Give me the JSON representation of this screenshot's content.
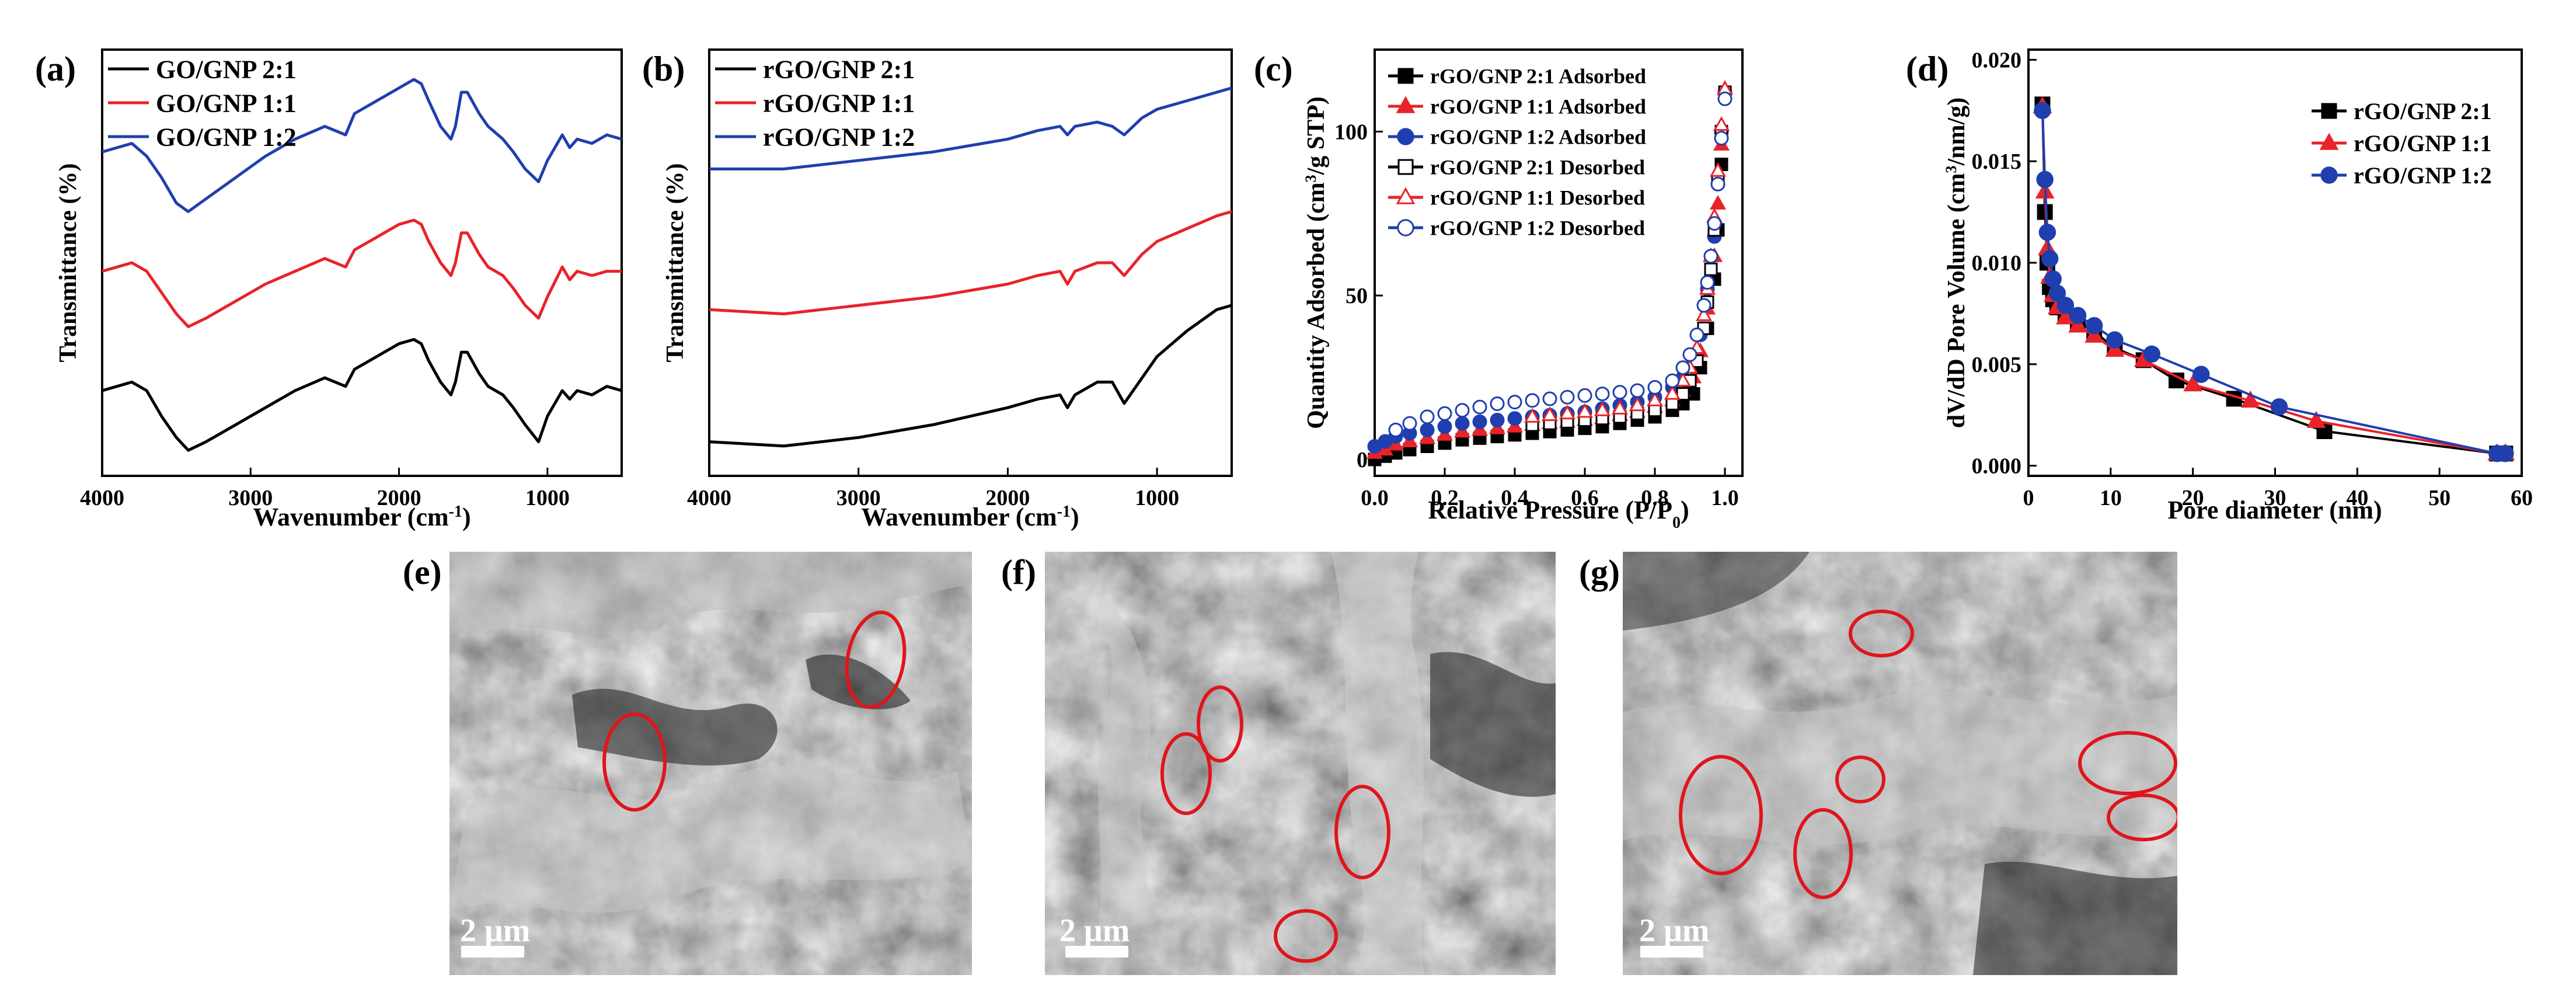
{
  "colors": {
    "black": "#000000",
    "red": "#e8232a",
    "blue": "#1f3fae",
    "circle": "#e0151c",
    "scalebar": "#ffffff"
  },
  "chart_data": [
    {
      "id": "a",
      "panel_label": "(a)",
      "type": "line",
      "title": "",
      "xlabel": "Wavenumber (cm",
      "xlabel_sup": "-1",
      "xlabel_end": ")",
      "ylabel": "Transmittance (%)",
      "xlim": [
        4000,
        500
      ],
      "xticks": [
        "4000",
        "3000",
        "2000",
        "1000"
      ],
      "ylim": [
        0,
        1
      ],
      "legend_position": "top-left",
      "series": [
        {
          "name": "GO/GNP 2:1",
          "color": "black",
          "x": [
            4000,
            3900,
            3800,
            3700,
            3600,
            3500,
            3420,
            3300,
            3100,
            2900,
            2700,
            2500,
            2360,
            2300,
            2200,
            2000,
            1900,
            1850,
            1800,
            1720,
            1650,
            1620,
            1580,
            1540,
            1460,
            1400,
            1300,
            1230,
            1150,
            1060,
            1000,
            900,
            850,
            800,
            700,
            600,
            500
          ],
          "y": [
            0.2,
            0.21,
            0.22,
            0.2,
            0.14,
            0.09,
            0.06,
            0.08,
            0.12,
            0.16,
            0.2,
            0.23,
            0.21,
            0.25,
            0.27,
            0.31,
            0.32,
            0.31,
            0.27,
            0.22,
            0.19,
            0.22,
            0.29,
            0.29,
            0.24,
            0.21,
            0.19,
            0.16,
            0.12,
            0.08,
            0.14,
            0.2,
            0.18,
            0.2,
            0.19,
            0.21,
            0.2
          ]
        },
        {
          "name": "GO/GNP 1:1",
          "color": "red",
          "x": [
            4000,
            3900,
            3800,
            3700,
            3600,
            3500,
            3420,
            3300,
            3100,
            2900,
            2700,
            2500,
            2360,
            2300,
            2200,
            2000,
            1900,
            1850,
            1800,
            1720,
            1650,
            1620,
            1580,
            1540,
            1460,
            1400,
            1300,
            1230,
            1150,
            1060,
            1000,
            900,
            850,
            800,
            700,
            600,
            500
          ],
          "y": [
            0.48,
            0.49,
            0.5,
            0.48,
            0.43,
            0.38,
            0.35,
            0.37,
            0.41,
            0.45,
            0.48,
            0.51,
            0.49,
            0.53,
            0.55,
            0.59,
            0.6,
            0.59,
            0.55,
            0.5,
            0.47,
            0.5,
            0.57,
            0.57,
            0.52,
            0.49,
            0.47,
            0.44,
            0.4,
            0.37,
            0.42,
            0.49,
            0.46,
            0.48,
            0.47,
            0.48,
            0.48
          ]
        },
        {
          "name": "GO/GNP 1:2",
          "color": "blue",
          "x": [
            4000,
            3900,
            3800,
            3700,
            3600,
            3500,
            3420,
            3300,
            3100,
            2900,
            2700,
            2500,
            2360,
            2300,
            2200,
            2000,
            1900,
            1850,
            1800,
            1720,
            1650,
            1620,
            1580,
            1540,
            1460,
            1400,
            1300,
            1230,
            1150,
            1060,
            1000,
            900,
            850,
            800,
            700,
            600,
            500
          ],
          "y": [
            0.76,
            0.77,
            0.78,
            0.75,
            0.7,
            0.64,
            0.62,
            0.65,
            0.7,
            0.75,
            0.79,
            0.82,
            0.8,
            0.85,
            0.87,
            0.91,
            0.93,
            0.92,
            0.88,
            0.82,
            0.79,
            0.82,
            0.9,
            0.9,
            0.85,
            0.82,
            0.79,
            0.76,
            0.72,
            0.69,
            0.74,
            0.8,
            0.77,
            0.79,
            0.78,
            0.8,
            0.79
          ]
        }
      ]
    },
    {
      "id": "b",
      "panel_label": "(b)",
      "type": "line",
      "title": "",
      "xlabel": "Wavenumber (cm",
      "xlabel_sup": "-1",
      "xlabel_end": ")",
      "ylabel": "Transmittance (%)",
      "xlim": [
        4000,
        500
      ],
      "xticks": [
        "4000",
        "3000",
        "2000",
        "1000"
      ],
      "ylim": [
        0,
        1
      ],
      "legend_position": "top-left",
      "series": [
        {
          "name": "rGO/GNP 2:1",
          "color": "black",
          "x": [
            4000,
            3500,
            3000,
            2500,
            2000,
            1800,
            1650,
            1600,
            1550,
            1400,
            1300,
            1220,
            1100,
            1000,
            800,
            600,
            500
          ],
          "y": [
            0.08,
            0.07,
            0.09,
            0.12,
            0.16,
            0.18,
            0.19,
            0.16,
            0.19,
            0.22,
            0.22,
            0.17,
            0.23,
            0.28,
            0.34,
            0.39,
            0.4
          ]
        },
        {
          "name": "rGO/GNP 1:1",
          "color": "red",
          "x": [
            4000,
            3500,
            3000,
            2500,
            2000,
            1800,
            1650,
            1600,
            1550,
            1400,
            1300,
            1220,
            1100,
            1000,
            800,
            600,
            500
          ],
          "y": [
            0.39,
            0.38,
            0.4,
            0.42,
            0.45,
            0.47,
            0.48,
            0.45,
            0.48,
            0.5,
            0.5,
            0.47,
            0.52,
            0.55,
            0.58,
            0.61,
            0.62
          ]
        },
        {
          "name": "rGO/GNP 1:2",
          "color": "blue",
          "x": [
            4000,
            3500,
            3000,
            2500,
            2000,
            1800,
            1650,
            1600,
            1550,
            1400,
            1300,
            1220,
            1100,
            1000,
            800,
            600,
            500
          ],
          "y": [
            0.72,
            0.72,
            0.74,
            0.76,
            0.79,
            0.81,
            0.82,
            0.8,
            0.82,
            0.83,
            0.82,
            0.8,
            0.84,
            0.86,
            0.88,
            0.9,
            0.91
          ]
        }
      ]
    },
    {
      "id": "c",
      "panel_label": "(c)",
      "type": "scatter",
      "title": "",
      "xlabel": "Relative Pressure (P/P",
      "xlabel_sub": "0",
      "xlabel_end": ")",
      "ylabel": "Quantity Adsorbed (cm",
      "ylabel_sup": "3",
      "ylabel_end": "/g STP)",
      "xlim": [
        0,
        1.05
      ],
      "ylim": [
        -5,
        125
      ],
      "xticks": [
        "0.0",
        "0.2",
        "0.4",
        "0.6",
        "0.8",
        "1.0"
      ],
      "yticks": [
        "0",
        "50",
        "100"
      ],
      "legend_position": "top-left",
      "series": [
        {
          "name": "rGO/GNP 2:1 Adsorbed",
          "color": "black",
          "marker": "square",
          "filled": true,
          "x": [
            0.0,
            0.03,
            0.06,
            0.1,
            0.15,
            0.2,
            0.25,
            0.3,
            0.35,
            0.4,
            0.45,
            0.5,
            0.55,
            0.6,
            0.65,
            0.7,
            0.75,
            0.8,
            0.85,
            0.88,
            0.91,
            0.93,
            0.95,
            0.97,
            0.98,
            0.99,
            1.0
          ],
          "y": [
            0,
            1,
            2,
            3,
            4,
            5,
            6,
            6.5,
            7,
            7.5,
            8,
            8.5,
            9,
            9.5,
            10,
            11,
            12,
            13,
            15,
            17,
            20,
            28,
            40,
            55,
            70,
            90,
            112
          ]
        },
        {
          "name": "rGO/GNP 1:1 Adsorbed",
          "color": "red",
          "marker": "triangle",
          "filled": true,
          "x": [
            0.0,
            0.03,
            0.06,
            0.1,
            0.15,
            0.2,
            0.25,
            0.3,
            0.35,
            0.4,
            0.45,
            0.5,
            0.55,
            0.6,
            0.65,
            0.7,
            0.75,
            0.8,
            0.85,
            0.88,
            0.91,
            0.93,
            0.95,
            0.97,
            0.98,
            0.99,
            1.0
          ],
          "y": [
            2,
            3,
            4.5,
            5.5,
            6.5,
            7.5,
            8.5,
            9,
            9.5,
            10,
            10.5,
            11,
            11.5,
            12,
            12.5,
            13.5,
            14.5,
            16,
            18,
            21,
            25,
            33,
            46,
            62,
            78,
            96,
            113
          ]
        },
        {
          "name": "rGO/GNP 1:2 Adsorbed",
          "color": "blue",
          "marker": "circle",
          "filled": true,
          "x": [
            0.0,
            0.03,
            0.06,
            0.1,
            0.15,
            0.2,
            0.25,
            0.3,
            0.35,
            0.4,
            0.45,
            0.5,
            0.55,
            0.6,
            0.65,
            0.7,
            0.75,
            0.8,
            0.85,
            0.88,
            0.91,
            0.93,
            0.95,
            0.97,
            0.98,
            0.99,
            1.0
          ],
          "y": [
            4,
            5.5,
            7,
            8,
            9,
            10,
            11,
            11.5,
            12,
            12.5,
            13,
            13.5,
            14,
            14.5,
            15.5,
            16.5,
            17.5,
            19,
            22,
            25,
            30,
            38,
            52,
            68,
            84,
            100,
            112
          ]
        },
        {
          "name": "rGO/GNP 2:1 Desorbed",
          "color": "black",
          "marker": "square",
          "filled": false,
          "x": [
            1.0,
            0.99,
            0.98,
            0.97,
            0.96,
            0.95,
            0.94,
            0.92,
            0.9,
            0.88,
            0.85,
            0.8,
            0.75,
            0.7,
            0.65,
            0.6,
            0.55,
            0.5,
            0.45
          ],
          "y": [
            112,
            100,
            85,
            70,
            58,
            48,
            40,
            30,
            24,
            20,
            17,
            15,
            14,
            13,
            12.5,
            12,
            11.5,
            11,
            10.5
          ]
        },
        {
          "name": "rGO/GNP 1:1 Desorbed",
          "color": "red",
          "marker": "triangle",
          "filled": false,
          "x": [
            1.0,
            0.99,
            0.98,
            0.97,
            0.96,
            0.95,
            0.94,
            0.92,
            0.9,
            0.88,
            0.85,
            0.8,
            0.75,
            0.7,
            0.65,
            0.6,
            0.55,
            0.5,
            0.45
          ],
          "y": [
            113,
            102,
            88,
            74,
            62,
            52,
            44,
            34,
            28,
            24,
            20,
            18,
            16.5,
            15.5,
            15,
            14.5,
            14,
            13.5,
            13
          ]
        },
        {
          "name": "rGO/GNP 1:2 Desorbed",
          "color": "blue",
          "marker": "circle",
          "filled": false,
          "x": [
            1.0,
            0.99,
            0.98,
            0.97,
            0.96,
            0.95,
            0.94,
            0.92,
            0.9,
            0.88,
            0.85,
            0.8,
            0.75,
            0.7,
            0.65,
            0.6,
            0.55,
            0.5,
            0.45,
            0.4,
            0.35,
            0.3,
            0.25,
            0.2,
            0.15,
            0.1,
            0.06
          ],
          "y": [
            110,
            98,
            84,
            72,
            62,
            54,
            47,
            38,
            32,
            28,
            24,
            22,
            21,
            20.5,
            20,
            19.5,
            19,
            18.5,
            18,
            17.5,
            17,
            16,
            15,
            14,
            13,
            11,
            9
          ]
        }
      ]
    },
    {
      "id": "d",
      "panel_label": "(d)",
      "type": "line",
      "title": "",
      "xlabel": "Pore diameter (nm)",
      "ylabel": "dV/dD Pore Volume (cm",
      "ylabel_sup": "3",
      "ylabel_end": "/nm/g)",
      "xlim": [
        0,
        60
      ],
      "ylim": [
        -0.0005,
        0.0205
      ],
      "xticks": [
        "0",
        "10",
        "20",
        "30",
        "40",
        "50",
        "60"
      ],
      "yticks": [
        "0.000",
        "0.005",
        "0.010",
        "0.015",
        "0.020"
      ],
      "legend_position": "top-right",
      "series": [
        {
          "name": "rGO/GNP 2:1",
          "color": "black",
          "marker": "square",
          "filled": true,
          "x": [
            1.7,
            2.0,
            2.3,
            2.6,
            3.0,
            3.5,
            4.5,
            6,
            8,
            10.5,
            14,
            18,
            25,
            36,
            57,
            58
          ],
          "y": [
            0.0178,
            0.0125,
            0.01,
            0.0088,
            0.0082,
            0.0078,
            0.0075,
            0.0071,
            0.0066,
            0.0058,
            0.0052,
            0.0042,
            0.0033,
            0.0017,
            0.0006,
            0.0006
          ]
        },
        {
          "name": "rGO/GNP 1:1",
          "color": "red",
          "marker": "triangle",
          "filled": true,
          "x": [
            1.7,
            2.0,
            2.3,
            2.6,
            3.0,
            3.5,
            4.5,
            6,
            8,
            10.5,
            14,
            20,
            27,
            35,
            57,
            58
          ],
          "y": [
            0.0177,
            0.0135,
            0.0107,
            0.0093,
            0.0084,
            0.0078,
            0.0073,
            0.0069,
            0.0064,
            0.0057,
            0.0052,
            0.004,
            0.0032,
            0.0022,
            0.0006,
            0.0006
          ]
        },
        {
          "name": "rGO/GNP 1:2",
          "color": "blue",
          "marker": "circle",
          "filled": true,
          "x": [
            1.7,
            2.0,
            2.3,
            2.6,
            3.0,
            3.5,
            4.5,
            6,
            8,
            10.5,
            15,
            21,
            30.5,
            57,
            58
          ],
          "y": [
            0.0175,
            0.0141,
            0.0115,
            0.0102,
            0.0092,
            0.0085,
            0.0079,
            0.0074,
            0.0069,
            0.0062,
            0.0055,
            0.0045,
            0.0029,
            0.0006,
            0.0006
          ]
        }
      ]
    }
  ],
  "sem_images": [
    {
      "id": "e",
      "panel_label": "(e)",
      "scale_bar": "2 μm",
      "image_description": "SEM micrograph of wrinkled graphene sheets"
    },
    {
      "id": "f",
      "panel_label": "(f)",
      "scale_bar": "2 μm",
      "image_description": "SEM micrograph of wrinkled graphene sheets"
    },
    {
      "id": "g",
      "panel_label": "(g)",
      "scale_bar": "2 μm",
      "image_description": "SEM micrograph of wrinkled graphene sheets"
    }
  ]
}
